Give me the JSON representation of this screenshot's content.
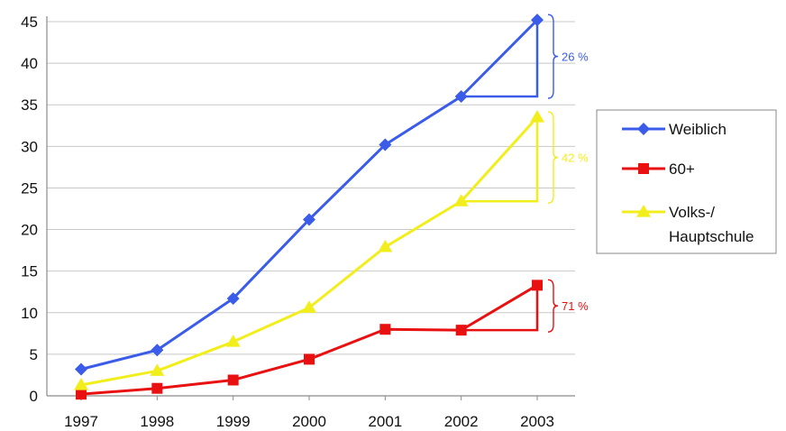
{
  "chart_data": {
    "type": "line",
    "title": "",
    "xlabel": "",
    "ylabel": "",
    "categories": [
      "1997",
      "1998",
      "1999",
      "2000",
      "2001",
      "2002",
      "2003"
    ],
    "ylim": [
      0,
      45
    ],
    "yticks": [
      "0",
      "5",
      "10",
      "15",
      "20",
      "25",
      "30",
      "35",
      "40",
      "45"
    ],
    "grid": "horizontal",
    "legend_position": "right",
    "series": [
      {
        "name": "Weiblich",
        "color": "#3a5ce8",
        "marker": "diamond",
        "values": [
          3.2,
          5.5,
          11.7,
          21.2,
          30.2,
          36.0,
          45.2
        ],
        "annotation": "26 %"
      },
      {
        "name": "60+",
        "color": "#e81010",
        "marker": "square",
        "values": [
          0.2,
          0.9,
          1.9,
          4.4,
          8.0,
          7.9,
          13.3
        ],
        "annotation": "71 %"
      },
      {
        "name": "Volks-/ Hauptschule",
        "legend_lines": [
          "Volks-/",
          "Hauptschule"
        ],
        "color": "#f2ee1c",
        "marker": "triangle",
        "values": [
          1.3,
          3.0,
          6.5,
          10.6,
          17.9,
          23.4,
          33.5
        ],
        "annotation": "42 %"
      }
    ]
  }
}
